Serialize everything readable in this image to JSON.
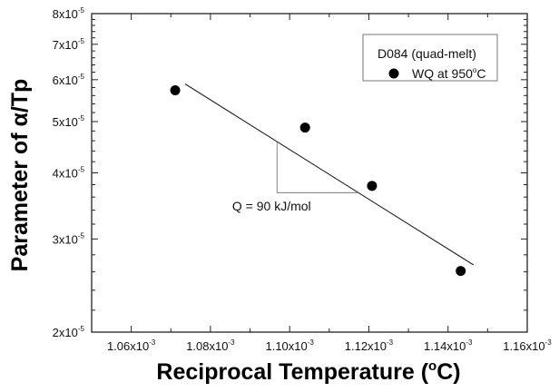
{
  "chart_data": {
    "type": "scatter",
    "title": "",
    "xlabel": "Reciprocal Temperature (",
    "xlabel_sup": "o",
    "xlabel_tail": "C)",
    "ylabel": "Parameter of α/Tp",
    "xlim": [
      0.00105,
      0.00116
    ],
    "ylim": [
      2e-05,
      8e-05
    ],
    "yscale": "log",
    "x_ticks": [
      {
        "value": 0.00106,
        "base": "1.06x10",
        "exp": "-3"
      },
      {
        "value": 0.00108,
        "base": "1.08x10",
        "exp": "-3"
      },
      {
        "value": 0.0011,
        "base": "1.10x10",
        "exp": "-3"
      },
      {
        "value": 0.00112,
        "base": "1.12x10",
        "exp": "-3"
      },
      {
        "value": 0.00114,
        "base": "1.14x10",
        "exp": "-3"
      },
      {
        "value": 0.00116,
        "base": "1.16x10",
        "exp": "-3"
      }
    ],
    "y_ticks": [
      {
        "value": 2e-05,
        "base": "2x10",
        "exp": "-5"
      },
      {
        "value": 3e-05,
        "base": "3x10",
        "exp": "-5"
      },
      {
        "value": 4e-05,
        "base": "4x10",
        "exp": "-5"
      },
      {
        "value": 5e-05,
        "base": "5x10",
        "exp": "-5"
      },
      {
        "value": 6e-05,
        "base": "6x10",
        "exp": "-5"
      },
      {
        "value": 7e-05,
        "base": "7x10",
        "exp": "-5"
      },
      {
        "value": 8e-05,
        "base": "8x10",
        "exp": "-5"
      }
    ],
    "series": [
      {
        "name": "WQ at 950°C",
        "x": [
          0.0010711,
          0.0011039,
          0.0011208,
          0.0011432
        ],
        "y": [
          5.73e-05,
          4.87e-05,
          3.78e-05,
          2.61e-05
        ]
      }
    ],
    "fit_line": {
      "x": [
        0.0010736,
        0.0011464
      ],
      "y": [
        5.89e-05,
        2.68e-05
      ]
    },
    "slope_triangle": {
      "x": [
        0.0010968,
        0.0011173
      ],
      "y_top": 4.59e-05,
      "y_bottom": 3.67e-05
    },
    "annotation": {
      "text": "Q = 90 kJ/mol",
      "x": 0.0010855,
      "y": 3.46e-05
    },
    "legend": {
      "title": "D084 (quad-melt)",
      "entry_base": "WQ at 950",
      "entry_sup": "o",
      "entry_tail": "C",
      "placement": "top-right"
    },
    "grid": false
  }
}
